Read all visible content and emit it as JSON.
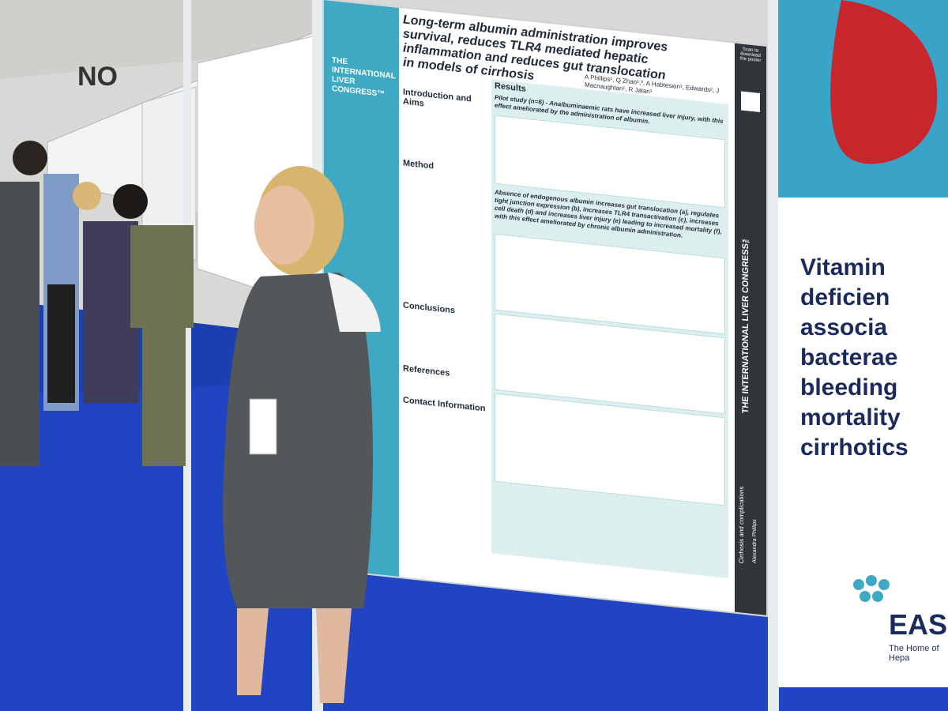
{
  "main_poster": {
    "title": "Long-term albumin administration improves survival, reduces TLR4 mediated hepatic inflammation and reduces gut translocation in models of cirrhosis",
    "authors": "A Phillips¹, Q Zhao¹,³, A Habtesion¹, Edwards², J Macnaughtan¹, R Jalan¹",
    "congress": "THE INTERNATIONAL LIVER CONGRESS™",
    "sections": {
      "introduction": "Introduction and Aims",
      "method": "Method",
      "conclusions": "Conclusions",
      "references": "References",
      "contact": "Contact Information"
    },
    "results_heading": "Results",
    "results_text_1": "Pilot study (n=6) - Analbuminaemic rats have increased liver injury, with this effect ameliorated by the administration of albumin.",
    "results_text_2": "Absence of endogenous albumin increases gut translocation (a), regulates tight junction expression (b), increases TLR4 transactivation (c), increases cell death (d) and increases liver injury (e) leading to increased mortality (f), with this effect ameliorated by chronic albumin administration.",
    "sidebar_label": "THE INTERNATIONAL LIVER CONGRESS™",
    "track_label": "Cirrhosis and complications",
    "presenter_name": "Alexandra Phillips",
    "scan_label": "Scan to download the poster"
  },
  "right_poster": {
    "headline_lines": [
      "Vitamin",
      "deficien",
      "associa",
      "bacteraе",
      "bleeding",
      "mortality",
      "cirrhotics"
    ],
    "logo_text": "EAS",
    "logo_tagline": "The Home of Hepa"
  },
  "venue": {
    "sign_letters": "NO"
  },
  "colors": {
    "carpet": "#1a3fb0",
    "poster_accent": "#3fa9c4",
    "headline": "#1b2a5c"
  }
}
